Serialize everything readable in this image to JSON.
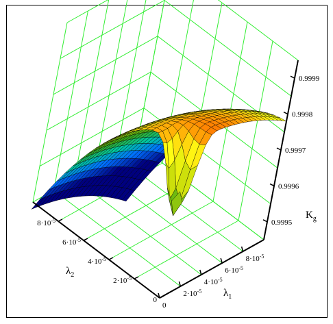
{
  "chart_data": {
    "type": "surface",
    "title": "",
    "xlabel": "λ",
    "xlabel_sub": "1",
    "ylabel": "λ",
    "ylabel_sub": "2",
    "zlabel": "K",
    "zlabel_sub": "g",
    "x_ticks": [
      {
        "base": "0",
        "exp": ""
      },
      {
        "base": "2·10",
        "exp": "-5"
      },
      {
        "base": "4·10",
        "exp": "-5"
      },
      {
        "base": "6·10",
        "exp": "-5"
      },
      {
        "base": "8·10",
        "exp": "-5"
      }
    ],
    "y_ticks": [
      {
        "base": "0",
        "exp": ""
      },
      {
        "base": "2·10",
        "exp": "-5"
      },
      {
        "base": "4·10",
        "exp": "-5"
      },
      {
        "base": "6·10",
        "exp": "-5"
      },
      {
        "base": "8·10",
        "exp": "-5"
      }
    ],
    "z_ticks": [
      "0.9995",
      "0.9996",
      "0.9997",
      "0.9998",
      "0.9999"
    ],
    "xlim": [
      0,
      0.0001
    ],
    "ylim": [
      0,
      0.0001
    ],
    "zlim": [
      0.99945,
      0.99995
    ],
    "grid": true,
    "colormap": [
      "#00007f",
      "#0070ff",
      "#00c8a0",
      "#3ca814",
      "#c8dc0a",
      "#ffff14",
      "#ff7a00",
      "#ff1414"
    ],
    "colors": {
      "grid": "#33ee33",
      "axis": "#000000",
      "mesh": "#000000"
    }
  }
}
